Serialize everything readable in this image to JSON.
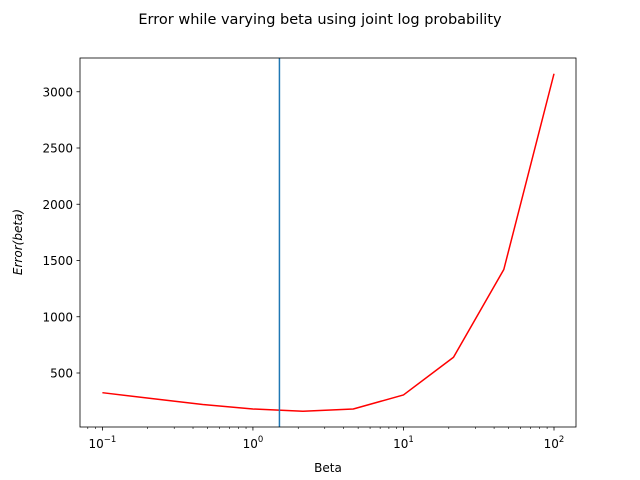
{
  "chart_data": {
    "type": "line",
    "title": "Error while varying beta using joint log probability",
    "xlabel": "Beta",
    "ylabel": "Error(beta)",
    "xscale": "log",
    "xlim": [
      0.071,
      140
    ],
    "ylim": [
      20,
      3300
    ],
    "grid": false,
    "x_ticks": [
      {
        "value": 0.1,
        "base": "10",
        "exp": "−1"
      },
      {
        "value": 1,
        "base": "10",
        "exp": "0"
      },
      {
        "value": 10,
        "base": "10",
        "exp": "1"
      },
      {
        "value": 100,
        "base": "10",
        "exp": "2"
      }
    ],
    "y_ticks": [
      {
        "value": 500,
        "label": "500"
      },
      {
        "value": 1000,
        "label": "1000"
      },
      {
        "value": 1500,
        "label": "1500"
      },
      {
        "value": 2000,
        "label": "2000"
      },
      {
        "value": 2500,
        "label": "2500"
      },
      {
        "value": 3000,
        "label": "3000"
      }
    ],
    "series": [
      {
        "color": "#ff0000",
        "x": [
          0.1,
          0.215,
          0.464,
          1.0,
          2.15,
          4.64,
          10.0,
          21.5,
          46.4,
          100.0
        ],
        "y": [
          325,
          272,
          220,
          180,
          160,
          180,
          305,
          640,
          1420,
          3160
        ]
      }
    ],
    "vline": {
      "x": 1.5,
      "color": "#1f77b4"
    }
  }
}
